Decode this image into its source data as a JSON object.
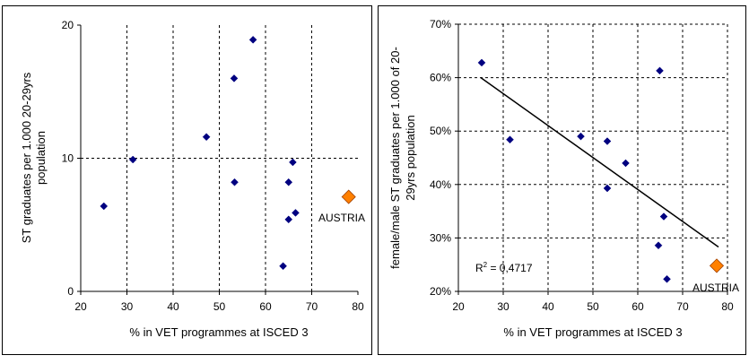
{
  "chart_data": [
    {
      "type": "scatter",
      "title": "",
      "xlabel": "% in VET programmes at ISCED 3",
      "ylabel": "ST graduates per 1.000 20-29yrs population",
      "xlim": [
        20,
        80
      ],
      "ylim": [
        0,
        20
      ],
      "xticks": [
        20,
        30,
        40,
        50,
        60,
        70,
        80
      ],
      "yticks": [
        0,
        10,
        20
      ],
      "xgrid": [
        30,
        40,
        50,
        60,
        70
      ],
      "ygrid": [
        10
      ],
      "grid": "dashed",
      "series": [
        {
          "color": "#000080",
          "marker": "diamond",
          "points": [
            [
              25,
              6.4
            ],
            [
              31.3,
              9.9
            ],
            [
              47.2,
              11.6
            ],
            [
              53.2,
              16.0
            ],
            [
              57.3,
              18.9
            ],
            [
              53.3,
              8.2
            ],
            [
              65.9,
              9.7
            ],
            [
              65.0,
              8.2
            ],
            [
              66.5,
              5.9
            ],
            [
              65.0,
              5.4
            ],
            [
              63.8,
              1.9
            ]
          ]
        },
        {
          "color": "#ff8000",
          "marker": "diamond-large",
          "points": [
            [
              78,
              7.1
            ]
          ]
        }
      ],
      "annotations": [
        {
          "text": "AUSTRIA",
          "x": 78,
          "y": 7.1
        }
      ]
    },
    {
      "type": "scatter",
      "title": "",
      "xlabel": "% in VET programmes at ISCED 3",
      "ylabel": "female/male ST graduates per 1.000 of 20-29yrs population",
      "xlim": [
        20,
        80
      ],
      "ylim": [
        20,
        70
      ],
      "xticks": [
        20,
        30,
        40,
        50,
        60,
        70,
        80
      ],
      "yticks": [
        20,
        30,
        40,
        50,
        60,
        70
      ],
      "ytick_labels": [
        "20%",
        "30%",
        "40%",
        "50%",
        "60%",
        "70%"
      ],
      "xgrid": [
        30,
        40,
        50,
        60,
        70,
        80
      ],
      "ygrid": [
        30,
        40,
        50,
        60,
        70
      ],
      "grid": "dashed",
      "series": [
        {
          "color": "#000080",
          "marker": "diamond",
          "points": [
            [
              25.2,
              62.8
            ],
            [
              31.5,
              48.4
            ],
            [
              47.3,
              49.0
            ],
            [
              53.2,
              48.1
            ],
            [
              57.3,
              44.0
            ],
            [
              53.2,
              39.3
            ],
            [
              64.9,
              61.3
            ],
            [
              65.8,
              34.0
            ],
            [
              64.6,
              28.6
            ],
            [
              66.5,
              22.3
            ]
          ]
        },
        {
          "color": "#ff8000",
          "marker": "diamond-large",
          "points": [
            [
              77.6,
              24.8
            ]
          ]
        }
      ],
      "trendline": {
        "from": [
          25,
          60.0
        ],
        "to": [
          78,
          28.3
        ],
        "color": "#000000"
      },
      "r2_text": {
        "prefix": "R",
        "sup": "2",
        "suffix": " = 0,4717"
      },
      "annotations": [
        {
          "text": "AUSTRIA",
          "x": 77.6,
          "y": 24.8
        }
      ]
    }
  ]
}
